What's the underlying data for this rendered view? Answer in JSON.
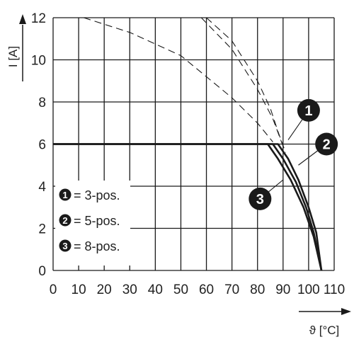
{
  "chart_data": {
    "type": "line",
    "title": "",
    "xlabel": "ϑ [°C]",
    "ylabel": "I [A]",
    "xlim": [
      0,
      110
    ],
    "ylim": [
      0,
      12
    ],
    "x_ticks": [
      "0",
      "10",
      "20",
      "30",
      "40",
      "50",
      "60",
      "70",
      "80",
      "90",
      "100",
      "110"
    ],
    "y_ticks": [
      "0",
      "2",
      "4",
      "6",
      "8",
      "10",
      "12"
    ],
    "grid": true,
    "series": [
      {
        "name": "3-pos.",
        "marker": "1",
        "derated": [
          [
            0,
            6
          ],
          [
            88,
            6
          ],
          [
            92,
            5.3
          ],
          [
            96,
            4.3
          ],
          [
            100,
            3.0
          ],
          [
            103,
            1.8
          ],
          [
            105,
            0
          ]
        ],
        "theoretical": [
          [
            60,
            12
          ],
          [
            70,
            10.9
          ],
          [
            80,
            9.0
          ],
          [
            85,
            7.7
          ],
          [
            88,
            6.6
          ],
          [
            91,
            5.6
          ]
        ]
      },
      {
        "name": "5-pos.",
        "marker": "2",
        "derated": [
          [
            0,
            6
          ],
          [
            86,
            6
          ],
          [
            90,
            5.3
          ],
          [
            95,
            4.2
          ],
          [
            99,
            3.0
          ],
          [
            102,
            1.8
          ],
          [
            105,
            0
          ]
        ],
        "theoretical": [
          [
            58,
            12
          ],
          [
            70,
            10.5
          ],
          [
            80,
            8.6
          ],
          [
            86,
            7.2
          ],
          [
            90,
            5.9
          ]
        ]
      },
      {
        "name": "8-pos.",
        "marker": "3",
        "derated": [
          [
            0,
            6
          ],
          [
            84,
            6
          ],
          [
            88,
            5.3
          ],
          [
            93,
            4.3
          ],
          [
            98,
            3.0
          ],
          [
            102,
            1.6
          ],
          [
            105,
            0
          ]
        ],
        "theoretical": [
          [
            12,
            12
          ],
          [
            30,
            11.3
          ],
          [
            50,
            10.2
          ],
          [
            70,
            8.2
          ],
          [
            80,
            7.0
          ],
          [
            86,
            6.1
          ]
        ]
      }
    ],
    "legend": [
      {
        "marker": "1",
        "text": "= 3-pos."
      },
      {
        "marker": "2",
        "text": "= 5-pos."
      },
      {
        "marker": "3",
        "text": "= 8-pos."
      }
    ],
    "callouts": [
      {
        "marker": "1",
        "at": [
          100,
          7.6
        ],
        "to": [
          92,
          6.2
        ]
      },
      {
        "marker": "2",
        "at": [
          107,
          6.0
        ],
        "to": [
          96,
          5.0
        ]
      },
      {
        "marker": "3",
        "at": [
          81,
          3.4
        ],
        "to": [
          90,
          4.3
        ]
      }
    ],
    "colors": {
      "line": "#1a1a1a",
      "grid": "#1a1a1a",
      "marker": "#1a1a1a"
    }
  }
}
